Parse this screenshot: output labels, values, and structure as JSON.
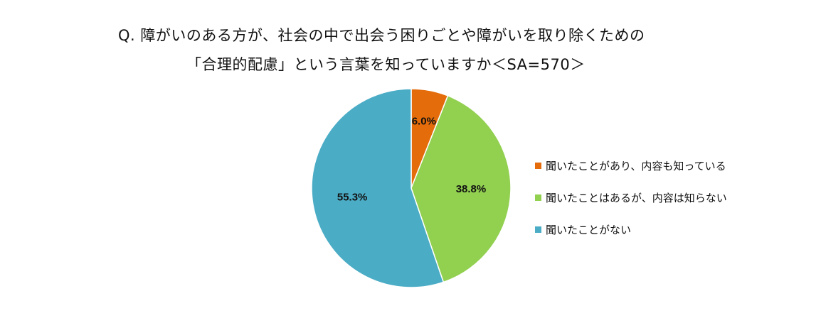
{
  "title": {
    "line1": "Q. 障がいのある方が、社会の中で出会う困りごとや障がいを取り除くための",
    "line2": "「合理的配慮」という言葉を知っていますか＜SA=570＞"
  },
  "chart_data": {
    "type": "pie",
    "title": "Q. 障がいのある方が、社会の中で出会う困りごとや障がいを取り除くための「合理的配慮」という言葉を知っていますか＜SA=570＞",
    "start_angle": "12 o'clock",
    "direction": "clockwise",
    "legend_position": "right",
    "slices": [
      {
        "label": "聞いたことがあり、内容も知っている",
        "value": 6.0,
        "display": "6.0%",
        "color": "#E46C0A"
      },
      {
        "label": "聞いたことはあるが、内容は知らない",
        "value": 38.8,
        "display": "38.8%",
        "color": "#92D050"
      },
      {
        "label": "聞いたことがない",
        "value": 55.3,
        "display": "55.3%",
        "color": "#4BACC6"
      }
    ]
  }
}
